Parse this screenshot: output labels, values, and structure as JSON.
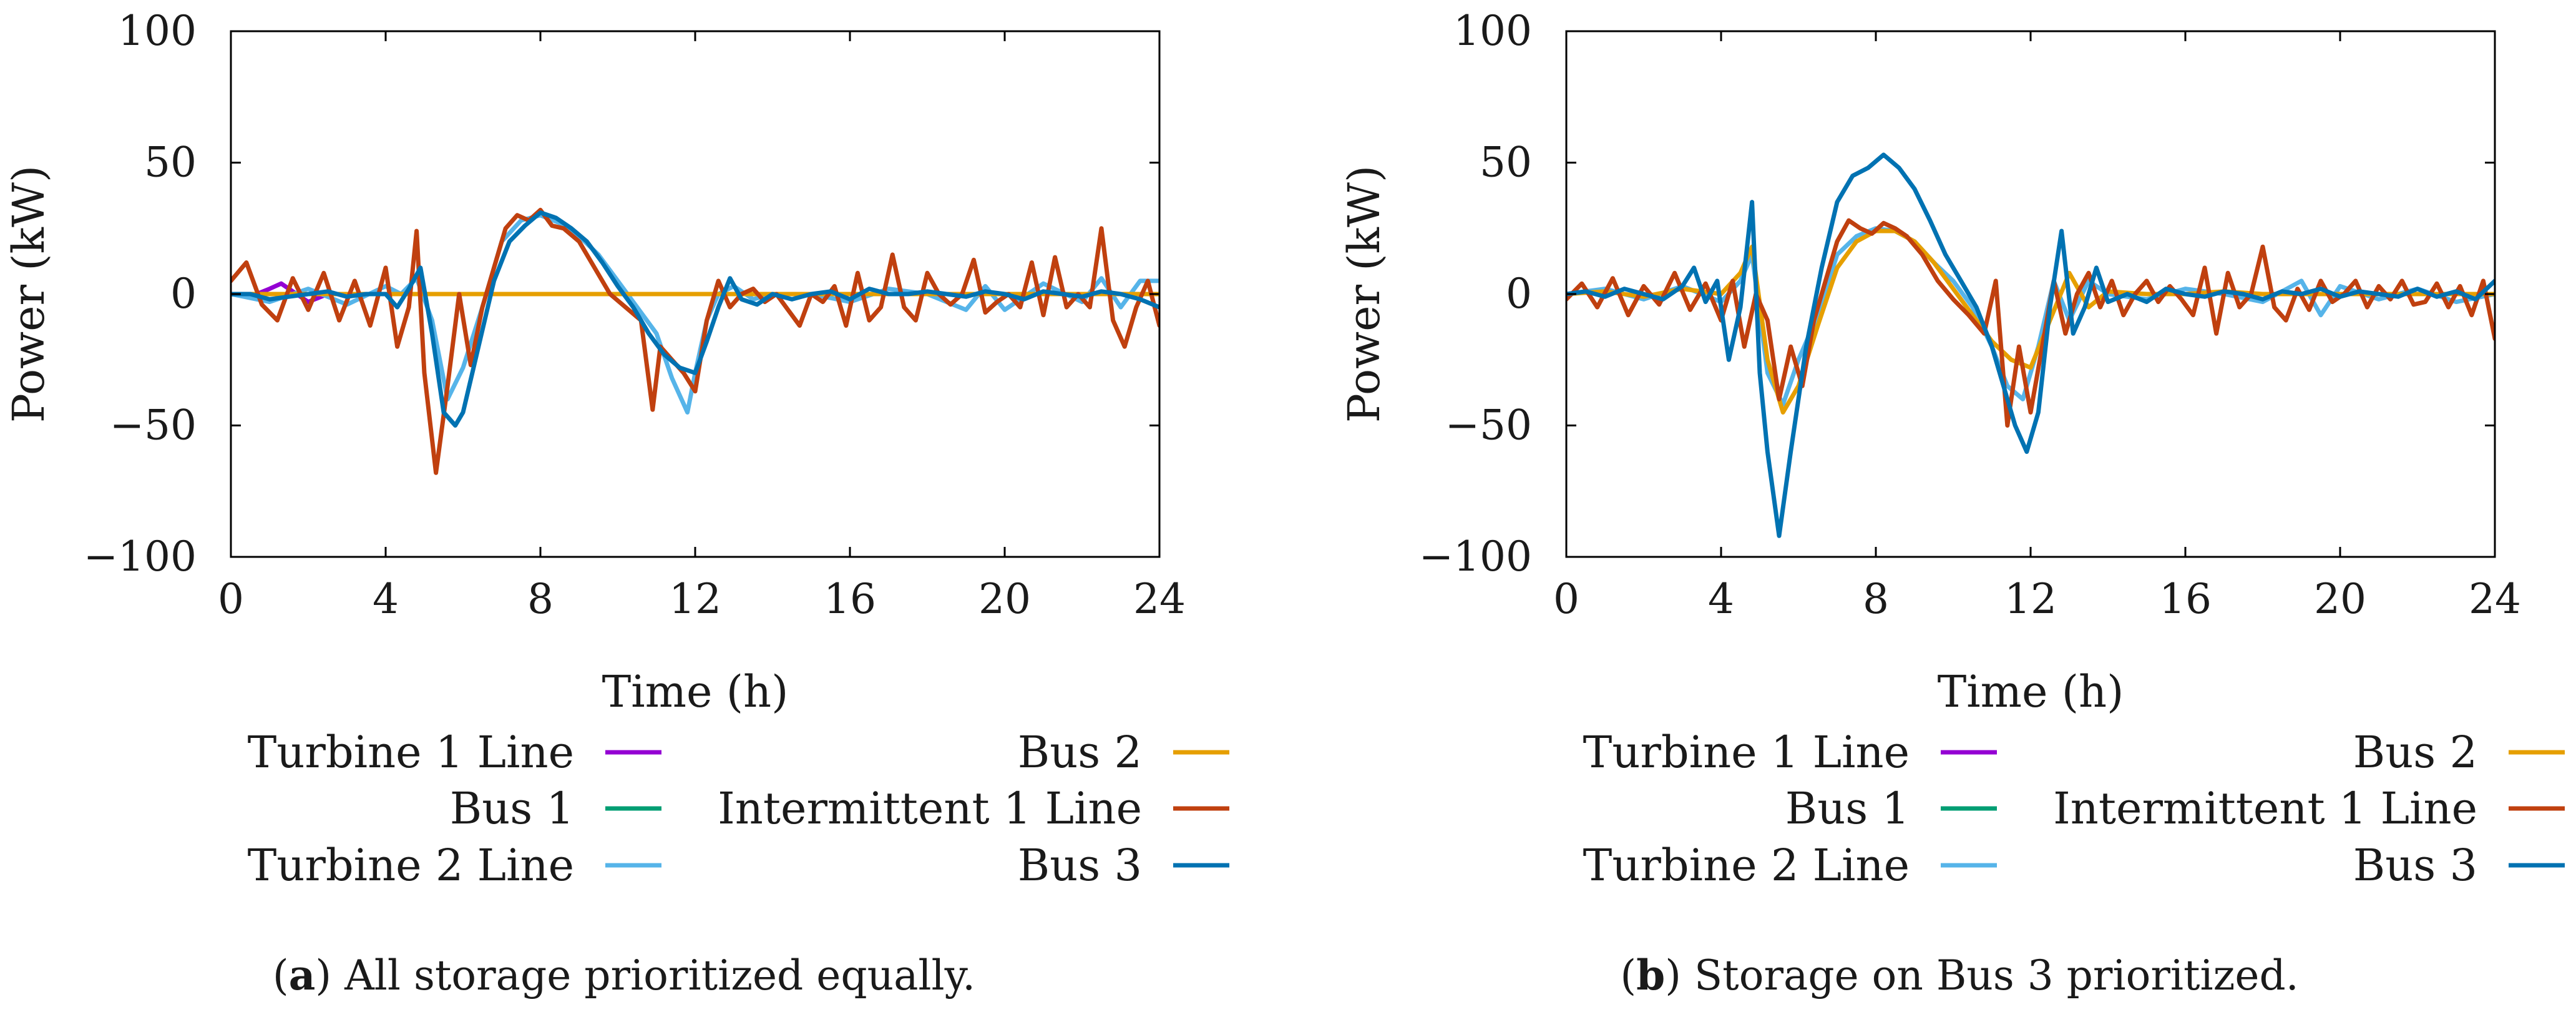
{
  "chart_data": [
    {
      "type": "line",
      "panel_letter": "a",
      "caption": "All storage prioritized equally.",
      "xlabel": "Time (h)",
      "ylabel": "Power (kW)",
      "xlim": [
        0,
        24
      ],
      "ylim": [
        -100,
        100
      ],
      "xticks": [
        0,
        4,
        8,
        12,
        16,
        20,
        24
      ],
      "yticks": [
        -100,
        -50,
        0,
        50,
        100
      ],
      "ytick_labels": [
        "−100",
        "−50",
        "0",
        "50",
        "100"
      ],
      "legend": [
        {
          "name": "Turbine 1 Line",
          "color": "#9400d3"
        },
        {
          "name": "Bus 1",
          "color": "#009e73"
        },
        {
          "name": "Turbine 2 Line",
          "color": "#56b4e9"
        },
        {
          "name": "Bus 2",
          "color": "#e69f00"
        },
        {
          "name": "Intermittent 1 Line",
          "color": "#c0400f"
        },
        {
          "name": "Bus 3",
          "color": "#0072b2"
        }
      ],
      "series": [
        {
          "name": "Turbine 1 Line",
          "color": "#9400d3",
          "x": [
            0,
            0.5,
            1,
            1.3,
            1.6,
            2,
            2.5,
            3
          ],
          "y": [
            0,
            -1,
            2,
            4,
            1,
            -3,
            0,
            0
          ]
        },
        {
          "name": "Turbine 2 Line",
          "color": "#56b4e9",
          "x": [
            0,
            1,
            2,
            3,
            4,
            4.4,
            4.8,
            5.2,
            5.6,
            6,
            6.5,
            7,
            7.5,
            8,
            8.5,
            9,
            9.5,
            10,
            10.5,
            11,
            11.4,
            11.8,
            12,
            12.3,
            12.6,
            13,
            13.5,
            14,
            15,
            16,
            17,
            18,
            19,
            19.5,
            20,
            21,
            22,
            22.5,
            23,
            23.5,
            24
          ],
          "y": [
            0,
            -3,
            2,
            -4,
            3,
            0,
            6,
            -10,
            -40,
            -28,
            -5,
            20,
            28,
            30,
            27,
            22,
            15,
            5,
            -5,
            -15,
            -32,
            -45,
            -30,
            -10,
            0,
            3,
            -2,
            0,
            0,
            -3,
            2,
            0,
            -6,
            3,
            -6,
            4,
            -3,
            6,
            -5,
            5,
            5
          ]
        },
        {
          "name": "Bus 2",
          "color": "#e69f00",
          "x": [
            0,
            12,
            24
          ],
          "y": [
            0,
            0,
            0
          ]
        },
        {
          "name": "Intermittent 1 Line",
          "color": "#c0400f",
          "x": [
            0,
            0.4,
            0.8,
            1.2,
            1.6,
            2,
            2.4,
            2.8,
            3.2,
            3.6,
            4,
            4.3,
            4.6,
            4.8,
            5,
            5.3,
            5.6,
            5.9,
            6.2,
            6.5,
            6.8,
            7.1,
            7.4,
            7.7,
            8,
            8.3,
            8.6,
            9,
            9.4,
            9.8,
            10.2,
            10.6,
            10.9,
            11.1,
            11.4,
            11.7,
            12,
            12.3,
            12.6,
            12.9,
            13.2,
            13.5,
            13.8,
            14.1,
            14.4,
            14.7,
            15,
            15.3,
            15.6,
            15.9,
            16.2,
            16.5,
            16.8,
            17.1,
            17.4,
            17.7,
            18,
            18.3,
            18.6,
            18.9,
            19.2,
            19.5,
            19.8,
            20.1,
            20.4,
            20.7,
            21,
            21.3,
            21.6,
            21.9,
            22.2,
            22.5,
            22.8,
            23.1,
            23.4,
            23.7,
            24
          ],
          "y": [
            5,
            12,
            -4,
            -10,
            6,
            -6,
            8,
            -10,
            5,
            -12,
            10,
            -20,
            -5,
            24,
            -30,
            -68,
            -35,
            0,
            -27,
            -5,
            10,
            25,
            30,
            28,
            32,
            26,
            25,
            20,
            10,
            0,
            -5,
            -10,
            -44,
            -20,
            -25,
            -30,
            -37,
            -10,
            5,
            -5,
            0,
            2,
            -3,
            0,
            -6,
            -12,
            0,
            -3,
            3,
            -12,
            8,
            -10,
            -5,
            15,
            -5,
            -10,
            8,
            0,
            -4,
            0,
            13,
            -7,
            -3,
            0,
            -5,
            12,
            -8,
            14,
            -5,
            0,
            -5,
            25,
            -10,
            -20,
            -5,
            5,
            -12
          ]
        },
        {
          "name": "Bus 3",
          "color": "#0072b2",
          "x": [
            0,
            0.5,
            1,
            1.5,
            2,
            2.5,
            3,
            3.5,
            4,
            4.3,
            4.6,
            4.9,
            5.2,
            5.5,
            5.8,
            6,
            6.4,
            6.8,
            7.2,
            7.6,
            8,
            8.4,
            8.8,
            9.2,
            9.6,
            10,
            10.4,
            10.8,
            11.2,
            11.6,
            12,
            12.3,
            12.6,
            12.9,
            13.2,
            13.6,
            14,
            14.5,
            15,
            15.5,
            16,
            16.5,
            17,
            17.5,
            18,
            18.5,
            19,
            19.5,
            20,
            20.5,
            21,
            21.5,
            22,
            22.5,
            23,
            23.5,
            24
          ],
          "y": [
            0,
            0,
            -2,
            -1,
            0,
            1,
            -1,
            0,
            0,
            -5,
            2,
            10,
            -15,
            -45,
            -50,
            -45,
            -20,
            5,
            20,
            26,
            31,
            29,
            25,
            20,
            12,
            3,
            -5,
            -15,
            -23,
            -28,
            -30,
            -18,
            -5,
            6,
            -2,
            -4,
            0,
            -2,
            0,
            1,
            -2,
            2,
            0,
            0,
            1,
            0,
            -1,
            1,
            0,
            -2,
            1,
            0,
            -1,
            1,
            0,
            -2,
            -5
          ]
        }
      ]
    },
    {
      "type": "line",
      "panel_letter": "b",
      "caption": "Storage on Bus 3 prioritized.",
      "xlabel": "Time (h)",
      "ylabel": "Power (kW)",
      "xlim": [
        0,
        24
      ],
      "ylim": [
        -100,
        100
      ],
      "xticks": [
        0,
        4,
        8,
        12,
        16,
        20,
        24
      ],
      "yticks": [
        -100,
        -50,
        0,
        50,
        100
      ],
      "ytick_labels": [
        "−100",
        "−50",
        "0",
        "50",
        "100"
      ],
      "legend": [
        {
          "name": "Turbine 1 Line",
          "color": "#9400d3"
        },
        {
          "name": "Bus 1",
          "color": "#009e73"
        },
        {
          "name": "Turbine 2 Line",
          "color": "#56b4e9"
        },
        {
          "name": "Bus 2",
          "color": "#e69f00"
        },
        {
          "name": "Intermittent 1 Line",
          "color": "#c0400f"
        },
        {
          "name": "Bus 3",
          "color": "#0072b2"
        }
      ],
      "series": [
        {
          "name": "Turbine 2 Line",
          "color": "#56b4e9",
          "x": [
            0,
            1,
            2,
            3,
            4,
            4.5,
            4.8,
            5.2,
            5.6,
            6,
            6.5,
            7,
            7.5,
            8,
            8.5,
            9,
            9.5,
            10,
            10.5,
            11,
            11.4,
            11.8,
            12.2,
            12.6,
            13,
            13.5,
            14,
            15,
            16,
            17,
            18,
            19,
            19.5,
            20,
            21,
            22,
            23,
            24
          ],
          "y": [
            0,
            2,
            -2,
            3,
            -3,
            5,
            15,
            -30,
            -42,
            -25,
            -8,
            15,
            22,
            25,
            24,
            20,
            12,
            5,
            -5,
            -20,
            -35,
            -40,
            -20,
            5,
            -10,
            5,
            0,
            -2,
            2,
            0,
            -3,
            5,
            -8,
            3,
            -2,
            2,
            -3,
            0
          ]
        },
        {
          "name": "Bus 2",
          "color": "#e69f00",
          "x": [
            0,
            1,
            2,
            3,
            4,
            4.5,
            4.8,
            5.2,
            5.6,
            6,
            6.5,
            7,
            7.5,
            8,
            8.5,
            9,
            9.5,
            10,
            10.5,
            11,
            11.5,
            12,
            12.5,
            13,
            13.5,
            14,
            15,
            16,
            17,
            18,
            19,
            20,
            21,
            22,
            23,
            24
          ],
          "y": [
            0,
            1,
            -1,
            2,
            0,
            8,
            18,
            -25,
            -45,
            -35,
            -12,
            10,
            20,
            24,
            24,
            20,
            12,
            2,
            -8,
            -18,
            -25,
            -28,
            -10,
            8,
            -5,
            1,
            0,
            0,
            1,
            0,
            0,
            0,
            0,
            0,
            0,
            0
          ]
        },
        {
          "name": "Intermittent 1 Line",
          "color": "#c0400f",
          "x": [
            0,
            0.4,
            0.8,
            1.2,
            1.6,
            2,
            2.4,
            2.8,
            3.2,
            3.6,
            4,
            4.3,
            4.6,
            4.9,
            5.2,
            5.5,
            5.8,
            6.1,
            6.4,
            6.7,
            7,
            7.3,
            7.6,
            7.9,
            8.2,
            8.5,
            8.8,
            9.2,
            9.6,
            10,
            10.4,
            10.8,
            11.1,
            11.4,
            11.7,
            12,
            12.3,
            12.6,
            12.9,
            13.2,
            13.5,
            13.8,
            14.1,
            14.4,
            14.7,
            15,
            15.3,
            15.6,
            15.9,
            16.2,
            16.5,
            16.8,
            17.1,
            17.4,
            17.7,
            18,
            18.3,
            18.6,
            18.9,
            19.2,
            19.5,
            19.8,
            20.1,
            20.4,
            20.7,
            21,
            21.3,
            21.6,
            21.9,
            22.2,
            22.5,
            22.8,
            23.1,
            23.4,
            23.7,
            24
          ],
          "y": [
            -2,
            4,
            -5,
            6,
            -8,
            3,
            -4,
            8,
            -6,
            4,
            -10,
            5,
            -20,
            0,
            -10,
            -40,
            -20,
            -35,
            -10,
            5,
            20,
            28,
            25,
            23,
            27,
            25,
            22,
            15,
            5,
            -2,
            -8,
            -15,
            5,
            -50,
            -20,
            -45,
            -20,
            5,
            -15,
            0,
            8,
            -5,
            5,
            -8,
            0,
            5,
            -3,
            3,
            -2,
            -8,
            10,
            -15,
            8,
            -5,
            0,
            18,
            -5,
            -10,
            2,
            -6,
            5,
            -3,
            0,
            5,
            -5,
            3,
            -2,
            5,
            -4,
            -3,
            4,
            -5,
            3,
            -8,
            5,
            -17
          ]
        },
        {
          "name": "Bus 3",
          "color": "#0072b2",
          "x": [
            0,
            0.5,
            1,
            1.5,
            2,
            2.5,
            3,
            3.3,
            3.6,
            3.9,
            4.2,
            4.5,
            4.8,
            5,
            5.2,
            5.5,
            5.8,
            6.2,
            6.6,
            7,
            7.4,
            7.8,
            8.2,
            8.6,
            9,
            9.4,
            9.8,
            10.2,
            10.6,
            11,
            11.3,
            11.6,
            11.9,
            12.2,
            12.5,
            12.8,
            13.1,
            13.4,
            13.7,
            14,
            14.5,
            15,
            15.5,
            16,
            16.5,
            17,
            17.5,
            18,
            18.5,
            19,
            19.5,
            20,
            20.5,
            21,
            21.5,
            22,
            22.5,
            23,
            23.5,
            24
          ],
          "y": [
            0,
            1,
            -1,
            2,
            0,
            -2,
            3,
            10,
            -3,
            5,
            -25,
            -5,
            35,
            -30,
            -60,
            -92,
            -60,
            -20,
            10,
            35,
            45,
            48,
            53,
            48,
            40,
            28,
            15,
            5,
            -5,
            -20,
            -35,
            -50,
            -60,
            -45,
            -5,
            24,
            -15,
            -5,
            10,
            -3,
            0,
            -3,
            2,
            0,
            -1,
            1,
            0,
            -2,
            1,
            0,
            2,
            -1,
            1,
            0,
            -1,
            2,
            -1,
            1,
            -2,
            5
          ]
        }
      ]
    }
  ]
}
